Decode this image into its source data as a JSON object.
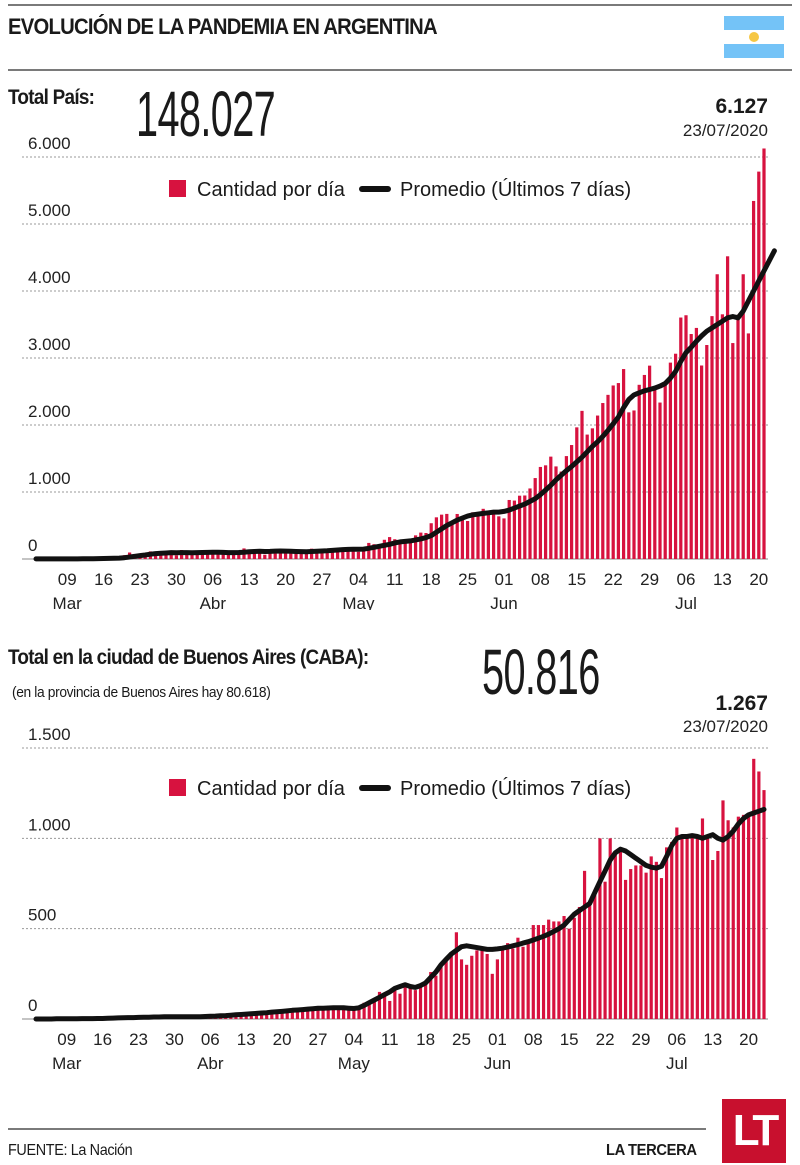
{
  "title": "EVOLUCIÓN DE LA PANDEMIA EN ARGENTINA",
  "flag_icon": "argentina-flag",
  "colors": {
    "bar": "#d7123f",
    "line": "#111111",
    "grid": "#9a9a9a",
    "flag_blue": "#74c3f7",
    "flag_sun": "#f6c744",
    "brand": "#c8102e"
  },
  "legend": {
    "bars": "Cantidad por día",
    "line": "Promedio (Últimos 7 días)"
  },
  "national": {
    "label": "Total País:",
    "total": "148.027",
    "last_value": "6.127",
    "last_date": "23/07/2020"
  },
  "caba": {
    "label": "Total en la ciudad de Buenos Aires (CABA):",
    "total": "50.816",
    "note": "(en la provincia de Buenos Aires hay 80.618)",
    "last_value": "1.267",
    "last_date": "23/07/2020"
  },
  "footer": {
    "source": "FUENTE: La Nación",
    "brand": "LA TERCERA",
    "logo": "LT"
  },
  "chart_data": [
    {
      "type": "bar",
      "title": "Total País",
      "start_date": "2020-03-03",
      "end_date": "2020-07-23",
      "xlabel": "",
      "ylabel": "",
      "ylim": [
        0,
        6000
      ],
      "yticks": [
        0,
        1000,
        2000,
        3000,
        4000,
        5000,
        6000
      ],
      "ytick_labels": [
        "0",
        "1.000",
        "2.000",
        "3.000",
        "4.000",
        "5.000",
        "6.000"
      ],
      "xtick_labels": [
        {
          "day": "09",
          "month": "Mar",
          "offset": 6
        },
        {
          "day": "16",
          "month": "",
          "offset": 13
        },
        {
          "day": "23",
          "month": "",
          "offset": 20
        },
        {
          "day": "30",
          "month": "",
          "offset": 27
        },
        {
          "day": "06",
          "month": "Abr",
          "offset": 34
        },
        {
          "day": "13",
          "month": "",
          "offset": 41
        },
        {
          "day": "20",
          "month": "",
          "offset": 48
        },
        {
          "day": "27",
          "month": "",
          "offset": 55
        },
        {
          "day": "04",
          "month": "May",
          "offset": 62
        },
        {
          "day": "11",
          "month": "",
          "offset": 69
        },
        {
          "day": "18",
          "month": "",
          "offset": 76
        },
        {
          "day": "25",
          "month": "",
          "offset": 83
        },
        {
          "day": "01",
          "month": "Jun",
          "offset": 90
        },
        {
          "day": "08",
          "month": "",
          "offset": 97
        },
        {
          "day": "15",
          "month": "",
          "offset": 104
        },
        {
          "day": "22",
          "month": "",
          "offset": 111
        },
        {
          "day": "29",
          "month": "",
          "offset": 118
        },
        {
          "day": "06",
          "month": "Jul",
          "offset": 125
        },
        {
          "day": "13",
          "month": "",
          "offset": 132
        },
        {
          "day": "20",
          "month": "",
          "offset": 139
        }
      ],
      "grid": true,
      "legend_position": "top-center",
      "series": [
        {
          "name": "Cantidad por día",
          "kind": "bar",
          "values": [
            1,
            0,
            0,
            1,
            3,
            4,
            2,
            4,
            0,
            12,
            3,
            13,
            11,
            9,
            15,
            18,
            31,
            58,
            97,
            75,
            65,
            71,
            114,
            90,
            88,
            96,
            101,
            55,
            134,
            87,
            78,
            105,
            86,
            97,
            102,
            132,
            92,
            94,
            75,
            112,
            158,
            98,
            144,
            137,
            64,
            103,
            115,
            120,
            100,
            97,
            110,
            106,
            83,
            154,
            147,
            117,
            117,
            136,
            164,
            125,
            159,
            144,
            108,
            165,
            240,
            221,
            165,
            287,
            327,
            295,
            245,
            263,
            304,
            353,
            394,
            388,
            534,
            622,
            662,
            673,
            553,
            672,
            620,
            567,
            697,
            702,
            749,
            706,
            689,
            637,
            606,
            881,
            872,
            945,
            948,
            1053,
            1208,
            1374,
            1398,
            1528,
            1382,
            1305,
            1536,
            1701,
            1965,
            2211,
            1857,
            1950,
            2141,
            2328,
            2450,
            2590,
            2626,
            2835,
            2189,
            2217,
            2600,
            2747,
            2886,
            2571,
            2335,
            2590,
            2931,
            3064,
            3604,
            3638,
            3358,
            3449,
            2888,
            3194,
            3625,
            4250,
            3652,
            4518,
            3223,
            3645,
            4250,
            3367,
            5344,
            5782,
            6127
          ]
        },
        {
          "name": "Promedio (Últimos 7 días)",
          "kind": "line",
          "values": [
            1,
            1,
            1,
            1,
            2,
            2,
            2,
            2,
            2,
            3,
            4,
            5,
            6,
            7,
            9,
            11,
            14,
            20,
            30,
            40,
            50,
            60,
            72,
            80,
            85,
            90,
            95,
            93,
            96,
            95,
            93,
            95,
            97,
            99,
            101,
            100,
            98,
            96,
            95,
            97,
            102,
            107,
            112,
            115,
            112,
            114,
            118,
            120,
            118,
            115,
            112,
            110,
            108,
            112,
            117,
            120,
            123,
            128,
            135,
            140,
            144,
            145,
            145,
            148,
            160,
            175,
            190,
            205,
            220,
            240,
            255,
            262,
            270,
            285,
            300,
            320,
            350,
            400,
            450,
            500,
            540,
            580,
            610,
            640,
            660,
            670,
            680,
            690,
            700,
            700,
            710,
            730,
            760,
            790,
            820,
            860,
            900,
            960,
            1030,
            1100,
            1180,
            1250,
            1320,
            1380,
            1450,
            1520,
            1600,
            1680,
            1750,
            1830,
            1920,
            2020,
            2120,
            2260,
            2380,
            2450,
            2480,
            2510,
            2530,
            2550,
            2580,
            2620,
            2700,
            2800,
            2950,
            3080,
            3160,
            3250,
            3330,
            3400,
            3450,
            3500,
            3550,
            3600,
            3620,
            3600,
            3700,
            3850,
            4000,
            4150,
            4300,
            4450,
            4600
          ]
        }
      ]
    },
    {
      "type": "bar",
      "title": "Total en la ciudad de Buenos Aires (CABA)",
      "start_date": "2020-03-03",
      "end_date": "2020-07-23",
      "xlabel": "",
      "ylabel": "",
      "ylim": [
        0,
        1500
      ],
      "yticks": [
        0,
        500,
        1000,
        1500
      ],
      "ytick_labels": [
        "0",
        "500",
        "1.000",
        "1.500"
      ],
      "xtick_labels": [
        {
          "day": "09",
          "month": "Mar",
          "offset": 6
        },
        {
          "day": "16",
          "month": "",
          "offset": 13
        },
        {
          "day": "23",
          "month": "",
          "offset": 20
        },
        {
          "day": "30",
          "month": "",
          "offset": 27
        },
        {
          "day": "06",
          "month": "Abr",
          "offset": 34
        },
        {
          "day": "13",
          "month": "",
          "offset": 41
        },
        {
          "day": "20",
          "month": "",
          "offset": 48
        },
        {
          "day": "27",
          "month": "",
          "offset": 55
        },
        {
          "day": "04",
          "month": "May",
          "offset": 62
        },
        {
          "day": "11",
          "month": "",
          "offset": 69
        },
        {
          "day": "18",
          "month": "",
          "offset": 76
        },
        {
          "day": "25",
          "month": "",
          "offset": 83
        },
        {
          "day": "01",
          "month": "Jun",
          "offset": 90
        },
        {
          "day": "08",
          "month": "",
          "offset": 97
        },
        {
          "day": "15",
          "month": "",
          "offset": 104
        },
        {
          "day": "22",
          "month": "",
          "offset": 111
        },
        {
          "day": "29",
          "month": "",
          "offset": 118
        },
        {
          "day": "06",
          "month": "Jul",
          "offset": 125
        },
        {
          "day": "13",
          "month": "",
          "offset": 132
        },
        {
          "day": "20",
          "month": "",
          "offset": 139
        }
      ],
      "grid": true,
      "legend_position": "top-center",
      "series": [
        {
          "name": "Cantidad por día",
          "kind": "bar",
          "values": [
            0,
            0,
            0,
            0,
            1,
            1,
            1,
            1,
            1,
            2,
            2,
            3,
            3,
            4,
            5,
            6,
            8,
            10,
            12,
            9,
            8,
            10,
            12,
            14,
            10,
            11,
            12,
            13,
            9,
            10,
            12,
            14,
            16,
            15,
            18,
            20,
            22,
            25,
            24,
            21,
            26,
            30,
            34,
            30,
            36,
            40,
            42,
            45,
            46,
            48,
            50,
            52,
            55,
            56,
            58,
            60,
            54,
            60,
            62,
            58,
            55,
            60,
            58,
            62,
            90,
            80,
            110,
            150,
            130,
            100,
            175,
            140,
            200,
            170,
            160,
            195,
            210,
            260,
            240,
            300,
            330,
            370,
            480,
            330,
            300,
            350,
            380,
            390,
            360,
            250,
            330,
            400,
            420,
            390,
            450,
            400,
            430,
            520,
            520,
            520,
            550,
            540,
            540,
            570,
            500,
            560,
            620,
            820,
            650,
            700,
            1000,
            760,
            1000,
            930,
            940,
            770,
            830,
            850,
            850,
            810,
            900,
            870,
            780,
            950,
            980,
            1060,
            1020,
            1010,
            1010,
            1000,
            1110,
            1000,
            880,
            930,
            1210,
            1100,
            1060,
            1120,
            1130,
            1140,
            1440,
            1370,
            1267
          ]
        },
        {
          "name": "Promedio (Últimos 7 días)",
          "kind": "line",
          "values": [
            0,
            0,
            0,
            0,
            1,
            1,
            1,
            1,
            1,
            2,
            2,
            2,
            3,
            3,
            4,
            5,
            6,
            7,
            8,
            8,
            9,
            10,
            10,
            11,
            11,
            12,
            12,
            12,
            12,
            12,
            12,
            13,
            13,
            14,
            15,
            16,
            18,
            19,
            21,
            23,
            25,
            27,
            29,
            31,
            33,
            35,
            38,
            40,
            42,
            45,
            48,
            50,
            52,
            55,
            57,
            59,
            60,
            61,
            62,
            62,
            62,
            60,
            58,
            62,
            75,
            90,
            105,
            120,
            135,
            150,
            170,
            180,
            190,
            180,
            175,
            185,
            200,
            230,
            260,
            300,
            330,
            360,
            380,
            400,
            405,
            400,
            395,
            390,
            385,
            385,
            388,
            392,
            398,
            405,
            412,
            420,
            428,
            437,
            447,
            458,
            470,
            485,
            500,
            520,
            550,
            580,
            600,
            620,
            640,
            700,
            760,
            820,
            880,
            920,
            940,
            930,
            910,
            890,
            870,
            850,
            840,
            835,
            845,
            900,
            960,
            1000,
            1010,
            1010,
            1015,
            1010,
            1000,
            1010,
            1020,
            1000,
            990,
            1010,
            1040,
            1080,
            1110,
            1130,
            1140,
            1150,
            1160
          ]
        }
      ]
    }
  ]
}
